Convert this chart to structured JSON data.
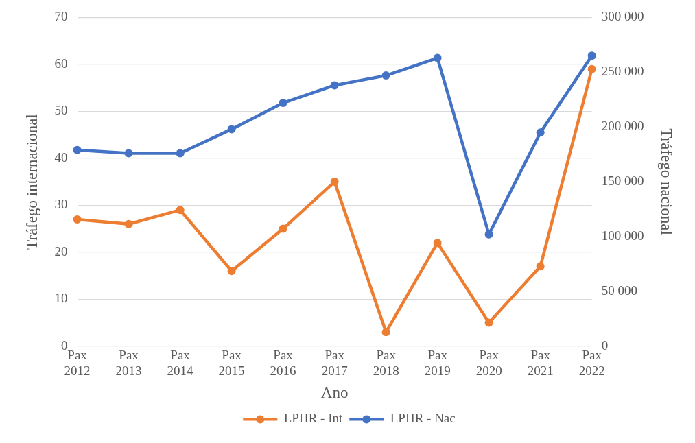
{
  "chart_data": {
    "type": "line",
    "xlabel": "Ano",
    "ylabel": "Tráfego internacional",
    "y2label": "Tráfego nacional",
    "categories": [
      "Pax 2012",
      "Pax 2013",
      "Pax 2014",
      "Pax 2015",
      "Pax 2016",
      "Pax 2017",
      "Pax 2018",
      "Pax 2019",
      "Pax 2020",
      "Pax 2021",
      "Pax 2022"
    ],
    "series": [
      {
        "name": "LPHR - Int",
        "color": "#ed7d31",
        "values": [
          27,
          26,
          29,
          16,
          25,
          35,
          3,
          22,
          5,
          17,
          59
        ]
      },
      {
        "name": "LPHR - Nac",
        "color": "#4472c4",
        "axis": "y2",
        "values": [
          179000,
          176000,
          176000,
          198000,
          222000,
          238000,
          247000,
          263000,
          102000,
          195000,
          265000
        ]
      }
    ],
    "ylim": [
      0,
      70
    ],
    "yticks": [
      0,
      10,
      20,
      30,
      40,
      50,
      60,
      70
    ],
    "y2lim": [
      0,
      300000
    ],
    "y2ticks": [
      {
        "value": 0,
        "label": "0"
      },
      {
        "value": 50000,
        "label": "50 000"
      },
      {
        "value": 100000,
        "label": "100 000"
      },
      {
        "value": 150000,
        "label": "150 000"
      },
      {
        "value": 200000,
        "label": "200 000"
      },
      {
        "value": 250000,
        "label": "250 000"
      },
      {
        "value": 300000,
        "label": "300 000"
      }
    ],
    "grid": "y",
    "legend": "bottom",
    "marker": "circle",
    "line_style": "solid"
  }
}
